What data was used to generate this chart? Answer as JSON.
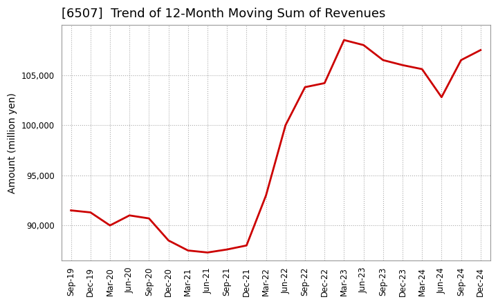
{
  "title": "[6507]  Trend of 12-Month Moving Sum of Revenues",
  "ylabel": "Amount (million yen)",
  "line_color": "#cc0000",
  "background_color": "#ffffff",
  "plot_bg_color": "#ffffff",
  "grid_color": "#aaaaaa",
  "labels": [
    "Sep-19",
    "Dec-19",
    "Mar-20",
    "Jun-20",
    "Sep-20",
    "Dec-20",
    "Mar-21",
    "Jun-21",
    "Sep-21",
    "Dec-21",
    "Mar-22",
    "Jun-22",
    "Sep-22",
    "Dec-22",
    "Mar-23",
    "Jun-23",
    "Sep-23",
    "Dec-23",
    "Mar-24",
    "Jun-24",
    "Sep-24",
    "Dec-24"
  ],
  "values": [
    91500,
    91300,
    90000,
    91000,
    90700,
    88500,
    87500,
    87300,
    87600,
    88000,
    93000,
    100000,
    103800,
    104200,
    108500,
    108000,
    106500,
    106000,
    105600,
    102800,
    106500,
    107500
  ],
  "ylim": [
    86500,
    110000
  ],
  "yticks": [
    90000,
    95000,
    100000,
    105000
  ],
  "title_fontsize": 13,
  "tick_fontsize": 8.5,
  "ylabel_fontsize": 10,
  "line_width": 2.0
}
